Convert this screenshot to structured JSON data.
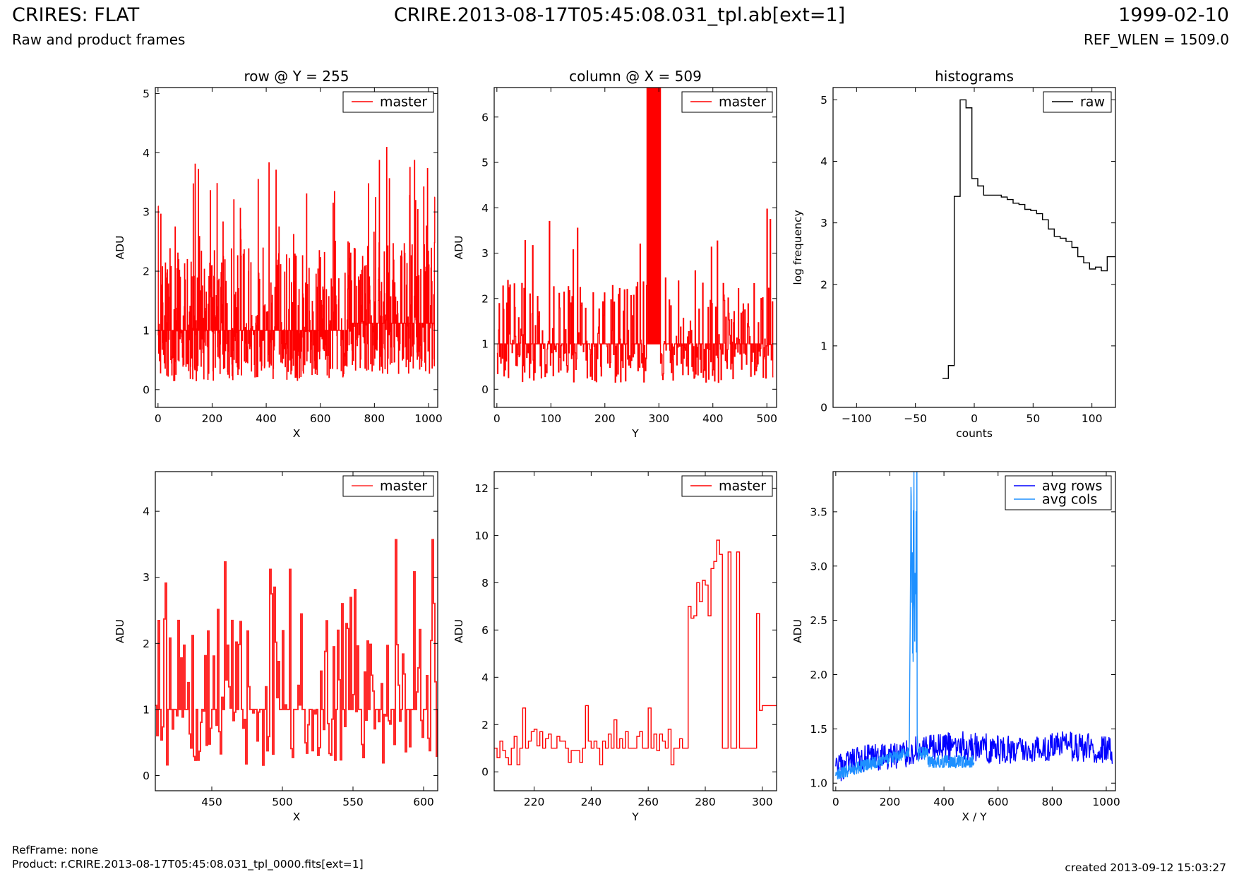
{
  "header": {
    "title": "CRIRES: FLAT",
    "subtitle": "Raw and product frames",
    "file": "CRIRE.2013-08-17T05:45:08.031_tpl.ab[ext=1]",
    "date": "1999-02-10",
    "ref_wlen": "REF_WLEN = 1509.0"
  },
  "footer": {
    "ref_frame": "RefFrame: none",
    "product": "Product: r.CRIRE.2013-08-17T05:45:08.031_tpl_0000.fits[ext=1]",
    "created": "created 2013-09-12 15:03:27"
  },
  "colors": {
    "master": "#ff0000",
    "master_zoom": "#ff2a2a",
    "raw": "#000000",
    "avg_rows": "#0000ff",
    "avg_cols": "#1e90ff"
  },
  "chart_data": [
    {
      "id": "row",
      "type": "line",
      "title": "row @ Y = 255",
      "xlabel": "X",
      "ylabel": "ADU",
      "xlim": [
        -10,
        1034
      ],
      "ylim": [
        -0.3,
        5.1
      ],
      "xticks": [
        0,
        200,
        400,
        600,
        800,
        1000
      ],
      "yticks": [
        0,
        1,
        2,
        3,
        4,
        5
      ],
      "legend": "top-right",
      "series": [
        {
          "name": "master",
          "color": "#ff0000",
          "step": true,
          "gen": "noise_row",
          "x": [
            0,
            1023
          ],
          "approx_values": "values ~0.1-2.5 around baseline 1.0, spikes up to 3.97 near X=845"
        }
      ]
    },
    {
      "id": "col",
      "type": "line",
      "title": "column @ X = 509",
      "xlabel": "Y",
      "ylabel": "ADU",
      "xlim": [
        -5,
        518
      ],
      "ylim": [
        -0.4,
        6.65
      ],
      "xticks": [
        0,
        100,
        200,
        300,
        400,
        500
      ],
      "yticks": [
        0,
        1,
        2,
        3,
        4,
        5,
        6
      ],
      "legend": "top-right",
      "series": [
        {
          "name": "master",
          "color": "#ff0000",
          "step": true,
          "gen": "noise_col",
          "x": [
            0,
            511
          ],
          "approx_values": "values ~0.1-2.5 around baseline 1.0, off-scale spikes at Y 278-302"
        }
      ]
    },
    {
      "id": "hist",
      "type": "line",
      "title": "histograms",
      "xlabel": "counts",
      "ylabel": "log frequency",
      "xlim": [
        -120,
        120
      ],
      "ylim": [
        0,
        5.2
      ],
      "xticks": [
        -100,
        -50,
        0,
        50,
        100
      ],
      "yticks": [
        0,
        1,
        2,
        3,
        4,
        5
      ],
      "legend": "top-right",
      "series": [
        {
          "name": "raw",
          "color": "#000000",
          "step": true,
          "x": [
            -27,
            -22,
            -17,
            -12,
            -7,
            -2,
            3,
            8,
            13,
            18,
            23,
            28,
            33,
            38,
            43,
            48,
            53,
            58,
            63,
            68,
            73,
            78,
            83,
            88,
            93,
            98,
            103,
            108,
            113,
            120
          ],
          "values": [
            0.47,
            0.68,
            3.43,
            5.0,
            4.87,
            3.72,
            3.6,
            3.45,
            3.45,
            3.45,
            3.42,
            3.38,
            3.32,
            3.3,
            3.22,
            3.2,
            3.15,
            3.05,
            2.9,
            2.78,
            2.75,
            2.7,
            2.6,
            2.45,
            2.35,
            2.25,
            2.28,
            2.22,
            2.45,
            2.45
          ]
        }
      ]
    },
    {
      "id": "rowz",
      "type": "line",
      "title": "",
      "xlabel": "X",
      "ylabel": "ADU",
      "xlim": [
        410,
        610
      ],
      "ylim": [
        -0.23,
        4.6
      ],
      "xticks": [
        450,
        500,
        550,
        600
      ],
      "yticks": [
        0,
        1,
        2,
        3,
        4
      ],
      "legend": "top-right",
      "series": [
        {
          "name": "master",
          "color": "#ff2a2a",
          "step": true,
          "gen": "noise_rowz",
          "x": [
            410,
            610
          ],
          "approx_values": "values ~0.1-3.6 around baseline 1.0 (zoom of row)"
        }
      ]
    },
    {
      "id": "colz",
      "type": "line",
      "title": "",
      "xlabel": "Y",
      "ylabel": "ADU",
      "xlim": [
        206,
        305
      ],
      "ylim": [
        -0.8,
        12.7
      ],
      "xticks": [
        220,
        240,
        260,
        280,
        300
      ],
      "yticks": [
        0,
        2,
        4,
        6,
        8,
        10,
        12
      ],
      "legend": "top-right",
      "series": [
        {
          "name": "master",
          "color": "#ff0000",
          "step": true,
          "x": [
            206,
            207,
            208,
            209,
            210,
            211,
            212,
            213,
            214,
            215,
            216,
            217,
            218,
            219,
            220,
            221,
            222,
            223,
            224,
            225,
            226,
            227,
            228,
            229,
            230,
            231,
            232,
            233,
            234,
            235,
            236,
            237,
            238,
            239,
            240,
            241,
            242,
            243,
            244,
            245,
            246,
            247,
            248,
            249,
            250,
            251,
            252,
            253,
            254,
            255,
            256,
            257,
            258,
            259,
            260,
            261,
            262,
            263,
            264,
            265,
            266,
            267,
            268,
            269,
            270,
            271,
            272,
            273,
            274,
            275,
            276,
            277,
            278,
            279,
            280,
            281,
            282,
            283,
            284,
            285,
            286,
            287,
            288,
            289,
            290,
            291,
            292,
            293,
            294,
            295,
            296,
            297,
            298,
            299,
            300,
            301,
            302,
            303,
            304
          ],
          "values": [
            1.0,
            0.6,
            1.3,
            0.9,
            0.6,
            0.3,
            1.0,
            1.5,
            0.3,
            1.0,
            2.7,
            1.0,
            1.3,
            1.7,
            1.8,
            1.1,
            1.7,
            1.0,
            1.4,
            1.6,
            1.0,
            1.0,
            1.5,
            1.3,
            1.3,
            1.0,
            0.4,
            0.9,
            0.9,
            0.9,
            0.4,
            1.0,
            2.8,
            1.3,
            1.0,
            1.3,
            1.0,
            0.3,
            1.3,
            1.0,
            1.6,
            1.0,
            2.2,
            1.0,
            1.4,
            1.0,
            1.7,
            1.0,
            1.0,
            1.0,
            1.5,
            1.7,
            1.0,
            1.0,
            2.7,
            1.0,
            1.6,
            0.9,
            1.6,
            1.3,
            1.0,
            1.8,
            0.3,
            1.0,
            1.0,
            1.4,
            1.0,
            1.0,
            7.0,
            6.5,
            6.6,
            8.0,
            7.2,
            8.1,
            7.9,
            6.6,
            8.6,
            8.9,
            9.8,
            9.2,
            1.0,
            1.0,
            9.3,
            1.0,
            1.0,
            9.3,
            1.0,
            1.0,
            1.0,
            1.0,
            1.0,
            1.0,
            6.7,
            2.6,
            2.8,
            2.8,
            2.8,
            2.8,
            2.8
          ]
        }
      ]
    },
    {
      "id": "avg",
      "type": "line",
      "title": "",
      "xlabel": "X / Y",
      "ylabel": "ADU",
      "xlim": [
        -10,
        1034
      ],
      "ylim": [
        0.93,
        3.87
      ],
      "xticks": [
        0,
        200,
        400,
        600,
        800,
        1000
      ],
      "yticks": [
        1.0,
        1.5,
        2.0,
        2.5,
        3.0,
        3.5
      ],
      "legend": "top-right",
      "series": [
        {
          "name": "avg rows",
          "color": "#0000ff",
          "step": false,
          "gen": "avg_rows",
          "x": [
            0,
            1023
          ],
          "approx_values": "~1.1 at X=0 rising to ~1.35, noise +/-0.15"
        },
        {
          "name": "avg cols",
          "color": "#1e90ff",
          "step": false,
          "gen": "avg_cols",
          "x": [
            0,
            511
          ],
          "approx_values": "~1.1 rising to ~1.3, off-scale peak at Y 280-300"
        }
      ]
    }
  ]
}
